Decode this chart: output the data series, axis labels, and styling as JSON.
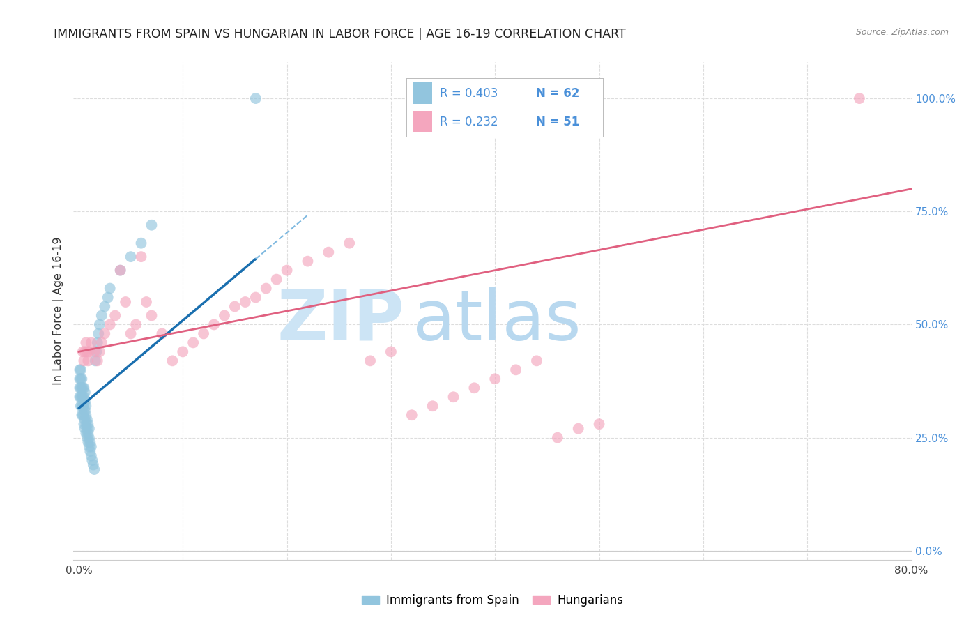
{
  "title": "IMMIGRANTS FROM SPAIN VS HUNGARIAN IN LABOR FORCE | AGE 16-19 CORRELATION CHART",
  "source": "Source: ZipAtlas.com",
  "ylabel_left": "In Labor Force | Age 16-19",
  "xlim": [
    -0.005,
    0.8
  ],
  "ylim": [
    -0.02,
    1.08
  ],
  "legend_r1": "R = 0.403",
  "legend_n1": "N = 62",
  "legend_r2": "R = 0.232",
  "legend_n2": "N = 51",
  "color_blue": "#92c5de",
  "color_pink": "#f4a6be",
  "color_trend_blue": "#1a6faf",
  "color_trend_pink": "#e06080",
  "color_trend_blue_dash": "#7fb9e0",
  "watermark_zip_color": "#cce4f5",
  "watermark_atlas_color": "#b8d8ef",
  "background_color": "#ffffff",
  "grid_color": "#dddddd",
  "right_axis_color": "#4a90d9",
  "title_color": "#222222",
  "source_color": "#888888",
  "spain_x": [
    0.001,
    0.001,
    0.001,
    0.001,
    0.002,
    0.002,
    0.002,
    0.002,
    0.002,
    0.003,
    0.003,
    0.003,
    0.003,
    0.003,
    0.004,
    0.004,
    0.004,
    0.004,
    0.005,
    0.005,
    0.005,
    0.005,
    0.005,
    0.006,
    0.006,
    0.006,
    0.006,
    0.006,
    0.007,
    0.007,
    0.007,
    0.007,
    0.008,
    0.008,
    0.008,
    0.009,
    0.009,
    0.009,
    0.01,
    0.01,
    0.01,
    0.011,
    0.011,
    0.012,
    0.012,
    0.013,
    0.014,
    0.015,
    0.016,
    0.017,
    0.018,
    0.019,
    0.02,
    0.022,
    0.025,
    0.028,
    0.03,
    0.04,
    0.05,
    0.06,
    0.07,
    0.17
  ],
  "spain_y": [
    0.34,
    0.36,
    0.38,
    0.4,
    0.32,
    0.34,
    0.36,
    0.38,
    0.4,
    0.3,
    0.32,
    0.34,
    0.36,
    0.38,
    0.3,
    0.32,
    0.34,
    0.36,
    0.28,
    0.3,
    0.32,
    0.34,
    0.36,
    0.27,
    0.29,
    0.31,
    0.33,
    0.35,
    0.26,
    0.28,
    0.3,
    0.32,
    0.25,
    0.27,
    0.29,
    0.24,
    0.26,
    0.28,
    0.23,
    0.25,
    0.27,
    0.22,
    0.24,
    0.21,
    0.23,
    0.2,
    0.19,
    0.18,
    0.42,
    0.44,
    0.46,
    0.48,
    0.5,
    0.52,
    0.54,
    0.56,
    0.58,
    0.62,
    0.65,
    0.68,
    0.72,
    1.0
  ],
  "hungary_x": [
    0.004,
    0.005,
    0.006,
    0.007,
    0.008,
    0.009,
    0.01,
    0.012,
    0.015,
    0.018,
    0.02,
    0.022,
    0.025,
    0.03,
    0.035,
    0.04,
    0.045,
    0.05,
    0.055,
    0.06,
    0.065,
    0.07,
    0.08,
    0.09,
    0.1,
    0.11,
    0.12,
    0.13,
    0.14,
    0.15,
    0.16,
    0.17,
    0.18,
    0.19,
    0.2,
    0.22,
    0.24,
    0.26,
    0.28,
    0.3,
    0.32,
    0.34,
    0.36,
    0.38,
    0.4,
    0.42,
    0.44,
    0.46,
    0.48,
    0.5,
    0.75
  ],
  "hungary_y": [
    0.44,
    0.42,
    0.44,
    0.46,
    0.44,
    0.42,
    0.44,
    0.46,
    0.44,
    0.42,
    0.44,
    0.46,
    0.48,
    0.5,
    0.52,
    0.62,
    0.55,
    0.48,
    0.5,
    0.65,
    0.55,
    0.52,
    0.48,
    0.42,
    0.44,
    0.46,
    0.48,
    0.5,
    0.52,
    0.54,
    0.55,
    0.56,
    0.58,
    0.6,
    0.62,
    0.64,
    0.66,
    0.68,
    0.42,
    0.44,
    0.3,
    0.32,
    0.34,
    0.36,
    0.38,
    0.4,
    0.42,
    0.25,
    0.27,
    0.28,
    1.0
  ],
  "blue_trend_x0": 0.0,
  "blue_trend_y0": 0.315,
  "blue_trend_x1": 0.17,
  "blue_trend_y1": 0.645,
  "pink_trend_x0": 0.0,
  "pink_trend_y0": 0.44,
  "pink_trend_x1": 0.8,
  "pink_trend_y1": 0.8
}
